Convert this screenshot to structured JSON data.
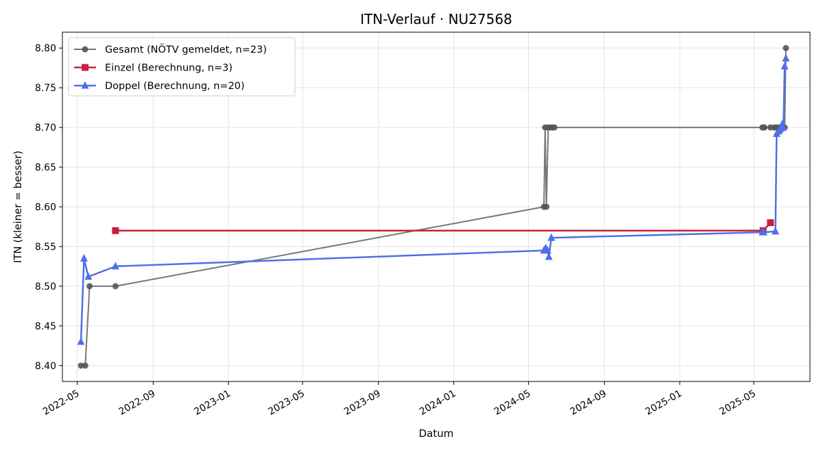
{
  "chart_data": {
    "type": "line",
    "title": "ITN-Verlauf · NU27568",
    "xlabel": "Datum",
    "ylabel": "ITN  (kleiner = besser)",
    "x_type": "date",
    "xlim": [
      "2022-04-07",
      "2025-07-31"
    ],
    "ylim": [
      8.38,
      8.82
    ],
    "yticks": [
      8.4,
      8.45,
      8.5,
      8.55,
      8.6,
      8.65,
      8.7,
      8.75,
      8.8
    ],
    "xticks": [
      "2022-05",
      "2022-09",
      "2023-01",
      "2023-05",
      "2023-09",
      "2024-01",
      "2024-05",
      "2024-09",
      "2025-01",
      "2025-05"
    ],
    "grid": true,
    "legend_position": "top-left",
    "series": [
      {
        "name": "Gesamt (NÖTV gemeldet, n=23)",
        "color": "#555555",
        "marker": "circle",
        "points": [
          [
            "2022-05-07",
            8.4
          ],
          [
            "2022-05-14",
            8.4
          ],
          [
            "2022-05-21",
            8.5
          ],
          [
            "2022-07-02",
            8.5
          ],
          [
            "2024-05-26",
            8.6
          ],
          [
            "2024-05-28",
            8.7
          ],
          [
            "2024-05-30",
            8.6
          ],
          [
            "2024-06-02",
            8.7
          ],
          [
            "2024-06-05",
            8.7
          ],
          [
            "2024-06-09",
            8.7
          ],
          [
            "2024-06-12",
            8.7
          ],
          [
            "2025-05-15",
            8.7
          ],
          [
            "2025-05-17",
            8.7
          ],
          [
            "2025-05-18",
            8.7
          ],
          [
            "2025-05-28",
            8.7
          ],
          [
            "2025-06-03",
            8.7
          ],
          [
            "2025-06-06",
            8.7
          ],
          [
            "2025-06-09",
            8.7
          ],
          [
            "2025-06-12",
            8.7
          ],
          [
            "2025-06-15",
            8.7
          ],
          [
            "2025-06-18",
            8.7
          ],
          [
            "2025-06-20",
            8.7
          ],
          [
            "2025-06-22",
            8.8
          ]
        ]
      },
      {
        "name": "Einzel (Berechnung, n=3)",
        "color": "#c8203c",
        "marker": "square",
        "points": [
          [
            "2022-07-02",
            8.57
          ],
          [
            "2025-05-16",
            8.57
          ],
          [
            "2025-05-28",
            8.58
          ]
        ]
      },
      {
        "name": "Doppel (Berechnung, n=20)",
        "color": "#4f6fe8",
        "marker": "triangle",
        "points": [
          [
            "2022-05-07",
            8.43
          ],
          [
            "2022-05-12",
            8.535
          ],
          [
            "2022-05-19",
            8.512
          ],
          [
            "2022-07-02",
            8.525
          ],
          [
            "2024-05-26",
            8.545
          ],
          [
            "2024-05-29",
            8.548
          ],
          [
            "2024-06-01",
            8.545
          ],
          [
            "2024-06-03",
            8.537
          ],
          [
            "2024-06-07",
            8.561
          ],
          [
            "2025-05-15",
            8.568
          ],
          [
            "2025-05-17",
            8.568
          ],
          [
            "2025-06-05",
            8.569
          ],
          [
            "2025-06-07",
            8.692
          ],
          [
            "2025-06-10",
            8.695
          ],
          [
            "2025-06-12",
            8.697
          ],
          [
            "2025-06-14",
            8.699
          ],
          [
            "2025-06-16",
            8.704
          ],
          [
            "2025-06-18",
            8.7
          ],
          [
            "2025-06-20",
            8.777
          ],
          [
            "2025-06-22",
            8.787
          ]
        ]
      }
    ]
  }
}
